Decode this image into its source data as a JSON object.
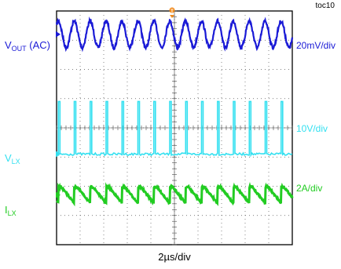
{
  "figure_id": "toc10",
  "colors": {
    "vout": "#1a1ad6",
    "vlx": "#33e0f0",
    "ilx": "#22cc22",
    "trigger": "#f08a1c",
    "grid": "#000000"
  },
  "chart_data": {
    "type": "line",
    "title": "",
    "xlabel": "2µs/div",
    "ylabel": "",
    "x_divisions": 10,
    "y_divisions": 8,
    "x_units_per_div": "2µs",
    "trigger_marker": "T",
    "switching_period_us": 1.35,
    "series": [
      {
        "name": "VOUT (AC)",
        "label_main": "V",
        "label_sub": "OUT",
        "label_suffix": " (AC)",
        "scale": "20mV/div",
        "waveform": "ripple",
        "center_div": 3.2,
        "ripple_pp_mV": 18
      },
      {
        "name": "VLX",
        "label_main": "V",
        "label_sub": "LX",
        "label_suffix": "",
        "scale": "10V/div",
        "waveform": "pulse",
        "low_div": -0.9,
        "high_div": 0.9,
        "duty": 0.1
      },
      {
        "name": "ILX",
        "label_main": "I",
        "label_sub": "LX",
        "label_suffix": "",
        "scale": "2A/div",
        "waveform": "triangle",
        "center_div": -2.3,
        "ripple_pp_div": 0.55
      }
    ]
  }
}
